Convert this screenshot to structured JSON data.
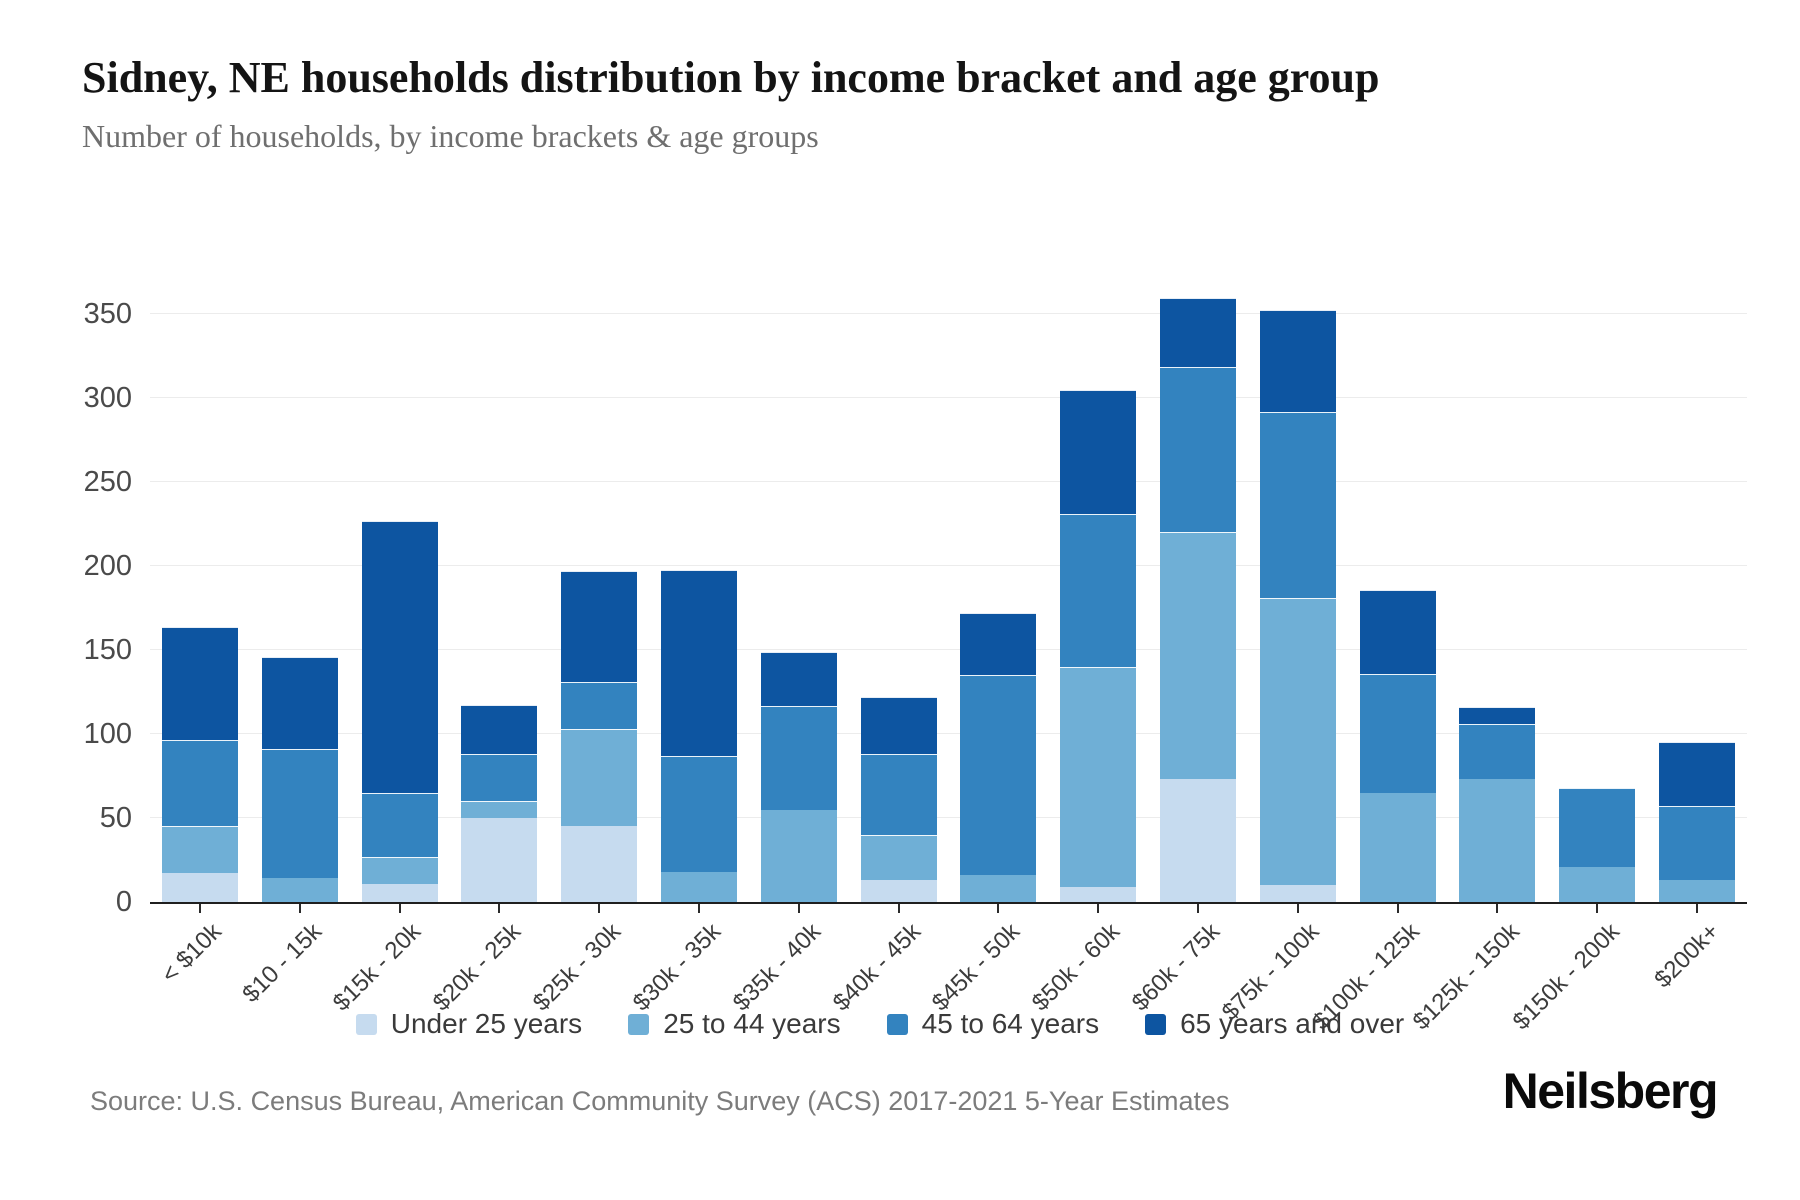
{
  "header": {
    "title": "Sidney, NE households distribution by income bracket and age group",
    "subtitle": "Number of households, by income brackets & age groups"
  },
  "footer": {
    "source": "Source: U.S. Census Bureau, American Community Survey (ACS) 2017-2021 5-Year Estimates",
    "brand": "Neilsberg"
  },
  "chart_data": {
    "type": "bar",
    "variant": "stacked-vertical",
    "title": "Sidney, NE households distribution by income bracket and age group",
    "subtitle": "Number of households, by income brackets & age groups",
    "xlabel": "",
    "ylabel": "Number of households",
    "ylim": [
      0,
      350
    ],
    "y_ticks": [
      0,
      50,
      100,
      150,
      200,
      250,
      300,
      350
    ],
    "grid": "horizontal",
    "legend_position": "bottom",
    "categories": [
      "< $10k",
      "$10 - 15k",
      "$15k - 20k",
      "$20k - 25k",
      "$25k - 30k",
      "$30k - 35k",
      "$35k - 40k",
      "$40k - 45k",
      "$45k - 50k",
      "$50k - 60k",
      "$60k - 75k",
      "$75k - 100k",
      "$100k - 125k",
      "$125k - 150k",
      "$150k - 200k",
      "$200k+"
    ],
    "series": [
      {
        "name": "Under 25 years",
        "color": "#c6dbef",
        "values": [
          17,
          0,
          11,
          50,
          45,
          0,
          0,
          13,
          0,
          9,
          73,
          10,
          0,
          0,
          0,
          0
        ]
      },
      {
        "name": "25 to 44 years",
        "color": "#6fafd6",
        "values": [
          28,
          14,
          16,
          10,
          58,
          18,
          55,
          27,
          16,
          131,
          147,
          171,
          65,
          73,
          21,
          13
        ]
      },
      {
        "name": "45 to 64 years",
        "color": "#3383bf",
        "values": [
          51,
          77,
          38,
          28,
          28,
          69,
          62,
          48,
          119,
          91,
          98,
          111,
          71,
          33,
          47,
          44
        ]
      },
      {
        "name": "65 years and over",
        "color": "#0d55a1",
        "values": [
          67,
          55,
          162,
          29,
          66,
          111,
          32,
          34,
          37,
          74,
          41,
          61,
          50,
          10,
          0,
          38
        ]
      }
    ],
    "totals": [
      163,
      146,
      227,
      117,
      197,
      198,
      149,
      122,
      172,
      305,
      359,
      353,
      186,
      116,
      68,
      95
    ]
  }
}
